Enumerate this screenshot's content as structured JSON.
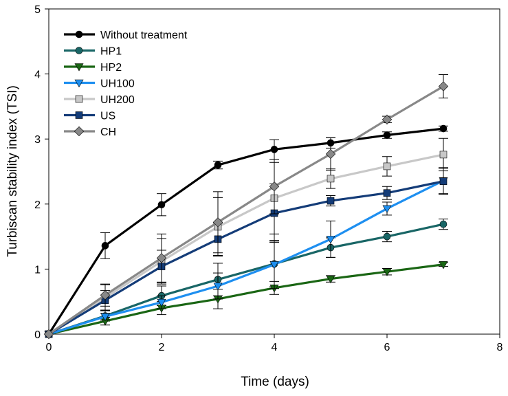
{
  "chart_data": {
    "type": "line",
    "title": "",
    "xlabel": "Time (days)",
    "ylabel": "Turbiscan stability index (TSI)",
    "xlim": [
      0,
      8
    ],
    "ylim": [
      0,
      5
    ],
    "xticks": [
      0,
      2,
      4,
      6,
      8
    ],
    "yticks": [
      0,
      1,
      2,
      3,
      4,
      5
    ],
    "grid": false,
    "legend_position": "top-left",
    "x": [
      0,
      1,
      2,
      3,
      4,
      5,
      6,
      7
    ],
    "series": [
      {
        "name": "Without treatment",
        "color": "#000000",
        "marker": "circle",
        "values": [
          0,
          1.36,
          1.99,
          2.6,
          2.84,
          2.94,
          3.06,
          3.16
        ],
        "errors": [
          0,
          0.2,
          0.17,
          0.06,
          0.15,
          0.08,
          0.05,
          0.04
        ]
      },
      {
        "name": "HP1",
        "color": "#196666",
        "marker": "circle",
        "values": [
          0,
          0.28,
          0.59,
          0.84,
          1.08,
          1.33,
          1.5,
          1.69
        ],
        "errors": [
          0,
          0.08,
          0.15,
          0.25,
          0.35,
          0.15,
          0.08,
          0.08
        ]
      },
      {
        "name": "HP2",
        "color": "#1a6614",
        "marker": "triangle-down",
        "values": [
          0,
          0.2,
          0.4,
          0.54,
          0.71,
          0.85,
          0.96,
          1.07
        ],
        "errors": [
          0,
          0.06,
          0.1,
          0.15,
          0.1,
          0.05,
          0.05,
          0.03
        ]
      },
      {
        "name": "UH100",
        "color": "#1e8ff0",
        "marker": "triangle-down",
        "values": [
          0,
          0.27,
          0.49,
          0.74,
          1.07,
          1.46,
          1.93,
          2.36
        ],
        "errors": [
          0,
          0.05,
          0.1,
          0.2,
          0.37,
          0.28,
          0.1,
          0.2
        ]
      },
      {
        "name": "UH200",
        "color": "#c8c8c8",
        "marker": "square",
        "values": [
          0,
          0.56,
          1.12,
          1.65,
          2.09,
          2.39,
          2.58,
          2.76
        ],
        "errors": [
          0,
          0.2,
          0.35,
          0.45,
          0.55,
          0.15,
          0.15,
          0.25
        ]
      },
      {
        "name": "US",
        "color": "#143c78",
        "marker": "square",
        "values": [
          0,
          0.52,
          1.04,
          1.46,
          1.86,
          2.05,
          2.17,
          2.35
        ],
        "errors": [
          0,
          0.15,
          0.25,
          0.25,
          0.45,
          0.08,
          0.1,
          0.2
        ]
      },
      {
        "name": "CH",
        "color": "#888888",
        "marker": "diamond",
        "values": [
          0,
          0.6,
          1.17,
          1.72,
          2.27,
          2.77,
          3.3,
          3.81
        ],
        "errors": [
          0,
          0.17,
          0.37,
          0.47,
          0.42,
          0.25,
          0.05,
          0.18
        ]
      }
    ]
  }
}
